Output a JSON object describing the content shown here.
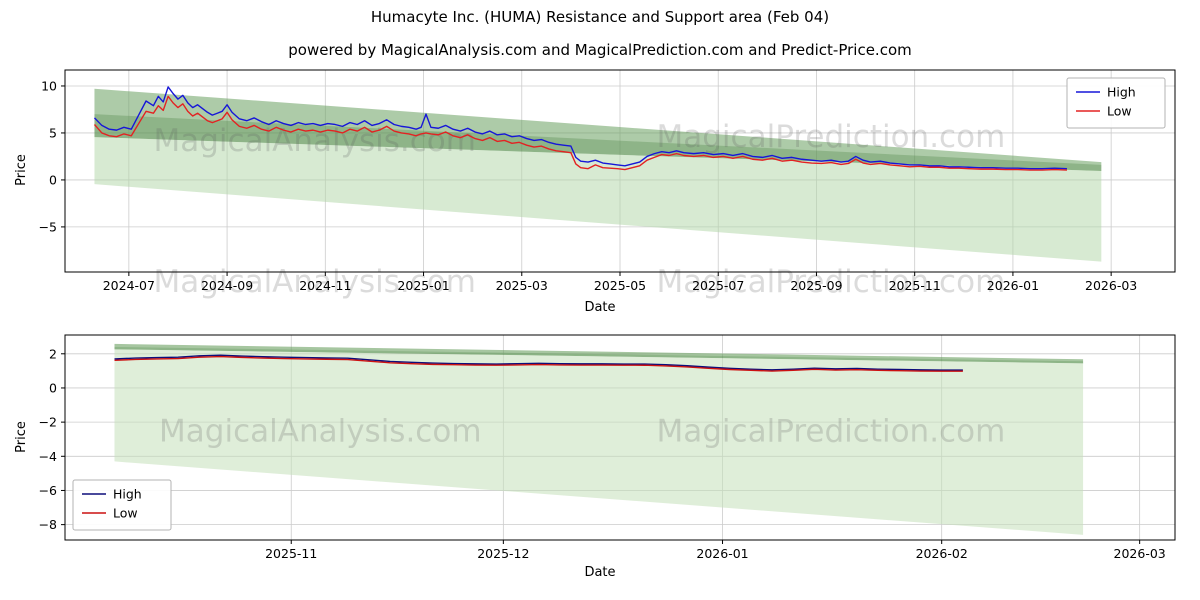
{
  "figure": {
    "title": "Humacyte Inc. (HUMA) Resistance and Support area (Feb 04)",
    "subtitle": "powered by MagicalAnalysis.com and MagicalPrediction.com and Predict-Price.com",
    "background": "#ffffff"
  },
  "style": {
    "grid_color": "#cccccc",
    "frame_color": "#000000",
    "watermark_color": "rgba(90,90,90,0.22)",
    "legend_border": "#b3b3b3"
  },
  "chart_data": [
    {
      "id": "main-history",
      "type": "line",
      "xlabel": "Date",
      "ylabel": "Price",
      "x_encoding": "months since 2024-06-01",
      "xlim": [
        -0.3,
        22.3
      ],
      "ylim": [
        -9.8,
        11.7
      ],
      "grid": true,
      "x_ticks": [
        {
          "v": 1,
          "label": "2024-07"
        },
        {
          "v": 3,
          "label": "2024-09"
        },
        {
          "v": 5,
          "label": "2024-11"
        },
        {
          "v": 7,
          "label": "2025-01"
        },
        {
          "v": 9,
          "label": "2025-03"
        },
        {
          "v": 11,
          "label": "2025-05"
        },
        {
          "v": 13,
          "label": "2025-07"
        },
        {
          "v": 15,
          "label": "2025-09"
        },
        {
          "v": 17,
          "label": "2025-11"
        },
        {
          "v": 19,
          "label": "2026-01"
        },
        {
          "v": 21,
          "label": "2026-03"
        }
      ],
      "y_ticks": [
        {
          "v": 10,
          "label": "10"
        },
        {
          "v": 5,
          "label": "5"
        },
        {
          "v": 0,
          "label": "0"
        },
        {
          "v": -5,
          "label": "−5"
        }
      ],
      "legend": {
        "position": "upper-right",
        "entries": [
          {
            "label": "High",
            "color": "#1616d8"
          },
          {
            "label": "Low",
            "color": "#e32222"
          }
        ]
      },
      "x": [
        0.3,
        0.45,
        0.6,
        0.75,
        0.9,
        1.05,
        1.2,
        1.35,
        1.5,
        1.6,
        1.7,
        1.8,
        1.9,
        2.0,
        2.1,
        2.2,
        2.3,
        2.4,
        2.5,
        2.6,
        2.7,
        2.8,
        2.9,
        3.0,
        3.1,
        3.25,
        3.4,
        3.55,
        3.7,
        3.85,
        4.0,
        4.15,
        4.3,
        4.45,
        4.6,
        4.75,
        4.9,
        5.05,
        5.2,
        5.35,
        5.5,
        5.65,
        5.8,
        5.95,
        6.1,
        6.25,
        6.4,
        6.55,
        6.7,
        6.85,
        6.95,
        7.05,
        7.15,
        7.3,
        7.45,
        7.6,
        7.75,
        7.9,
        8.05,
        8.2,
        8.35,
        8.5,
        8.65,
        8.8,
        8.95,
        9.1,
        9.25,
        9.4,
        9.55,
        9.7,
        9.85,
        10.0,
        10.1,
        10.2,
        10.35,
        10.5,
        10.65,
        10.8,
        10.95,
        11.1,
        11.25,
        11.4,
        11.55,
        11.7,
        11.85,
        12.0,
        12.15,
        12.3,
        12.5,
        12.7,
        12.9,
        13.1,
        13.3,
        13.5,
        13.7,
        13.9,
        14.1,
        14.3,
        14.5,
        14.7,
        14.9,
        15.1,
        15.3,
        15.5,
        15.65,
        15.8,
        15.95,
        16.1,
        16.3,
        16.5,
        16.7,
        16.9,
        17.1,
        17.3,
        17.5,
        17.7,
        17.9,
        18.1,
        18.35,
        18.6,
        18.85,
        19.1,
        19.35,
        19.6,
        19.85,
        20.1
      ],
      "series": [
        {
          "name": "High",
          "color": "#1616d8",
          "values": [
            6.6,
            5.8,
            5.4,
            5.3,
            5.6,
            5.4,
            6.9,
            8.4,
            7.9,
            8.9,
            8.3,
            9.9,
            9.2,
            8.6,
            9.0,
            8.2,
            7.7,
            8.0,
            7.6,
            7.2,
            6.9,
            7.1,
            7.3,
            8.0,
            7.2,
            6.5,
            6.3,
            6.6,
            6.2,
            5.9,
            6.3,
            6.0,
            5.8,
            6.1,
            5.9,
            6.0,
            5.8,
            6.0,
            5.9,
            5.7,
            6.1,
            5.9,
            6.3,
            5.8,
            6.0,
            6.4,
            5.9,
            5.7,
            5.6,
            5.4,
            5.6,
            7.0,
            5.6,
            5.5,
            5.8,
            5.4,
            5.2,
            5.5,
            5.1,
            4.9,
            5.2,
            4.8,
            4.9,
            4.6,
            4.7,
            4.4,
            4.2,
            4.3,
            4.0,
            3.8,
            3.7,
            3.6,
            2.4,
            2.0,
            1.9,
            2.1,
            1.8,
            1.7,
            1.6,
            1.5,
            1.7,
            1.9,
            2.5,
            2.8,
            3.0,
            2.9,
            3.1,
            2.9,
            2.8,
            2.9,
            2.7,
            2.8,
            2.6,
            2.8,
            2.5,
            2.4,
            2.6,
            2.3,
            2.4,
            2.2,
            2.1,
            2.0,
            2.1,
            1.9,
            2.0,
            2.5,
            2.1,
            1.9,
            2.0,
            1.8,
            1.7,
            1.6,
            1.6,
            1.5,
            1.5,
            1.4,
            1.4,
            1.35,
            1.3,
            1.3,
            1.25,
            1.25,
            1.2,
            1.2,
            1.25,
            1.2
          ]
        },
        {
          "name": "Low",
          "color": "#e32222",
          "values": [
            5.9,
            5.0,
            4.7,
            4.6,
            4.9,
            4.7,
            6.0,
            7.3,
            7.1,
            7.9,
            7.4,
            8.9,
            8.2,
            7.7,
            8.1,
            7.3,
            6.8,
            7.1,
            6.7,
            6.3,
            6.1,
            6.3,
            6.5,
            7.2,
            6.4,
            5.7,
            5.5,
            5.8,
            5.4,
            5.2,
            5.6,
            5.3,
            5.1,
            5.4,
            5.2,
            5.3,
            5.1,
            5.3,
            5.2,
            5.0,
            5.4,
            5.2,
            5.6,
            5.1,
            5.3,
            5.7,
            5.2,
            5.0,
            4.9,
            4.7,
            4.9,
            5.0,
            4.9,
            4.8,
            5.1,
            4.7,
            4.5,
            4.8,
            4.4,
            4.2,
            4.5,
            4.1,
            4.2,
            3.9,
            4.0,
            3.7,
            3.5,
            3.6,
            3.3,
            3.1,
            3.0,
            2.9,
            1.7,
            1.3,
            1.2,
            1.6,
            1.3,
            1.25,
            1.2,
            1.1,
            1.3,
            1.5,
            2.1,
            2.4,
            2.7,
            2.6,
            2.8,
            2.6,
            2.5,
            2.6,
            2.4,
            2.5,
            2.3,
            2.5,
            2.2,
            2.1,
            2.3,
            2.0,
            2.1,
            1.9,
            1.8,
            1.75,
            1.85,
            1.65,
            1.75,
            2.2,
            1.8,
            1.65,
            1.75,
            1.6,
            1.5,
            1.4,
            1.45,
            1.35,
            1.35,
            1.25,
            1.25,
            1.2,
            1.15,
            1.15,
            1.1,
            1.1,
            1.05,
            1.05,
            1.1,
            1.05
          ]
        }
      ],
      "bands": [
        {
          "name": "resistance-band-outer",
          "color": "rgba(106,160,96,0.55)",
          "points": [
            [
              0.3,
              9.7
            ],
            [
              20.8,
              1.9
            ],
            [
              20.8,
              0.95
            ],
            [
              0.3,
              4.55
            ]
          ]
        },
        {
          "name": "resistance-band-inner",
          "color": "rgba(72,130,62,0.30)",
          "points": [
            [
              0.3,
              7.0
            ],
            [
              20.8,
              1.6
            ],
            [
              20.8,
              0.95
            ],
            [
              0.3,
              4.55
            ]
          ]
        },
        {
          "name": "support-area",
          "color": "rgba(176,214,166,0.50)",
          "points": [
            [
              0.3,
              4.55
            ],
            [
              20.8,
              0.95
            ],
            [
              20.8,
              -8.7
            ],
            [
              0.3,
              -0.45
            ]
          ]
        }
      ],
      "watermarks": [
        {
          "text": "MagicalAnalysis.com",
          "fx": 0.225,
          "fy": 0.4
        },
        {
          "text": "MagicalPrediction.com",
          "fx": 0.69,
          "fy": 0.38
        },
        {
          "text": "MagicalAnalysis.com",
          "fx": 0.225,
          "fy": 1.1
        },
        {
          "text": "MagicalPrediction.com",
          "fx": 0.69,
          "fy": 1.1
        }
      ]
    },
    {
      "id": "recent-zoom",
      "type": "line",
      "xlabel": "Date",
      "ylabel": "Price",
      "x_encoding": "days since 2025-10-01",
      "xlim": [
        -1,
        156
      ],
      "ylim": [
        -8.9,
        3.1
      ],
      "grid": true,
      "x_ticks": [
        {
          "v": 31,
          "label": "2025-11"
        },
        {
          "v": 61,
          "label": "2025-12"
        },
        {
          "v": 92,
          "label": "2026-01"
        },
        {
          "v": 123,
          "label": "2026-02"
        },
        {
          "v": 151,
          "label": "2026-03"
        }
      ],
      "y_ticks": [
        {
          "v": 2,
          "label": "2"
        },
        {
          "v": 0,
          "label": "0"
        },
        {
          "v": -2,
          "label": "−2"
        },
        {
          "v": -4,
          "label": "−4"
        },
        {
          "v": -6,
          "label": "−6"
        },
        {
          "v": -8,
          "label": "−8"
        }
      ],
      "legend": {
        "position": "lower-left",
        "entries": [
          {
            "label": "High",
            "color": "#0d0d7a"
          },
          {
            "label": "Low",
            "color": "#cc1111"
          }
        ]
      },
      "x": [
        6,
        9,
        12,
        15,
        18,
        21,
        24,
        27,
        30,
        33,
        36,
        39,
        42,
        45,
        48,
        51,
        54,
        57,
        60,
        63,
        66,
        69,
        72,
        75,
        78,
        81,
        84,
        87,
        90,
        93,
        96,
        99,
        102,
        105,
        108,
        111,
        114,
        117,
        120,
        123,
        126
      ],
      "series": [
        {
          "name": "High",
          "color": "#0d0d7a",
          "values": [
            1.7,
            1.75,
            1.78,
            1.8,
            1.88,
            1.92,
            1.87,
            1.83,
            1.8,
            1.78,
            1.76,
            1.74,
            1.65,
            1.55,
            1.5,
            1.46,
            1.43,
            1.41,
            1.4,
            1.42,
            1.44,
            1.42,
            1.41,
            1.41,
            1.4,
            1.4,
            1.36,
            1.3,
            1.22,
            1.15,
            1.1,
            1.06,
            1.1,
            1.16,
            1.12,
            1.14,
            1.1,
            1.08,
            1.06,
            1.05,
            1.05
          ]
        },
        {
          "name": "Low",
          "color": "#cc1111",
          "values": [
            1.62,
            1.67,
            1.7,
            1.72,
            1.8,
            1.84,
            1.79,
            1.75,
            1.72,
            1.7,
            1.68,
            1.66,
            1.57,
            1.47,
            1.42,
            1.38,
            1.36,
            1.34,
            1.33,
            1.35,
            1.37,
            1.35,
            1.34,
            1.34,
            1.33,
            1.33,
            1.29,
            1.23,
            1.15,
            1.08,
            1.03,
            0.99,
            1.03,
            1.09,
            1.05,
            1.07,
            1.03,
            1.01,
            0.99,
            0.98,
            0.98
          ]
        }
      ],
      "bands": [
        {
          "name": "resistance-band-outer",
          "color": "rgba(106,160,96,0.60)",
          "points": [
            [
              6,
              2.58
            ],
            [
              143,
              1.68
            ],
            [
              143,
              1.44
            ],
            [
              6,
              2.26
            ]
          ]
        },
        {
          "name": "resistance-band-inner",
          "color": "rgba(72,130,62,0.25)",
          "points": [
            [
              6,
              2.4
            ],
            [
              143,
              1.56
            ],
            [
              143,
              1.44
            ],
            [
              6,
              2.26
            ]
          ]
        },
        {
          "name": "support-area",
          "color": "rgba(196,224,186,0.55)",
          "points": [
            [
              6,
              2.26
            ],
            [
              143,
              1.44
            ],
            [
              143,
              -8.6
            ],
            [
              6,
              -4.3
            ]
          ]
        }
      ],
      "watermarks": [
        {
          "text": "MagicalAnalysis.com",
          "fx": 0.23,
          "fy": 0.52
        },
        {
          "text": "MagicalPrediction.com",
          "fx": 0.69,
          "fy": 0.52
        }
      ]
    }
  ]
}
